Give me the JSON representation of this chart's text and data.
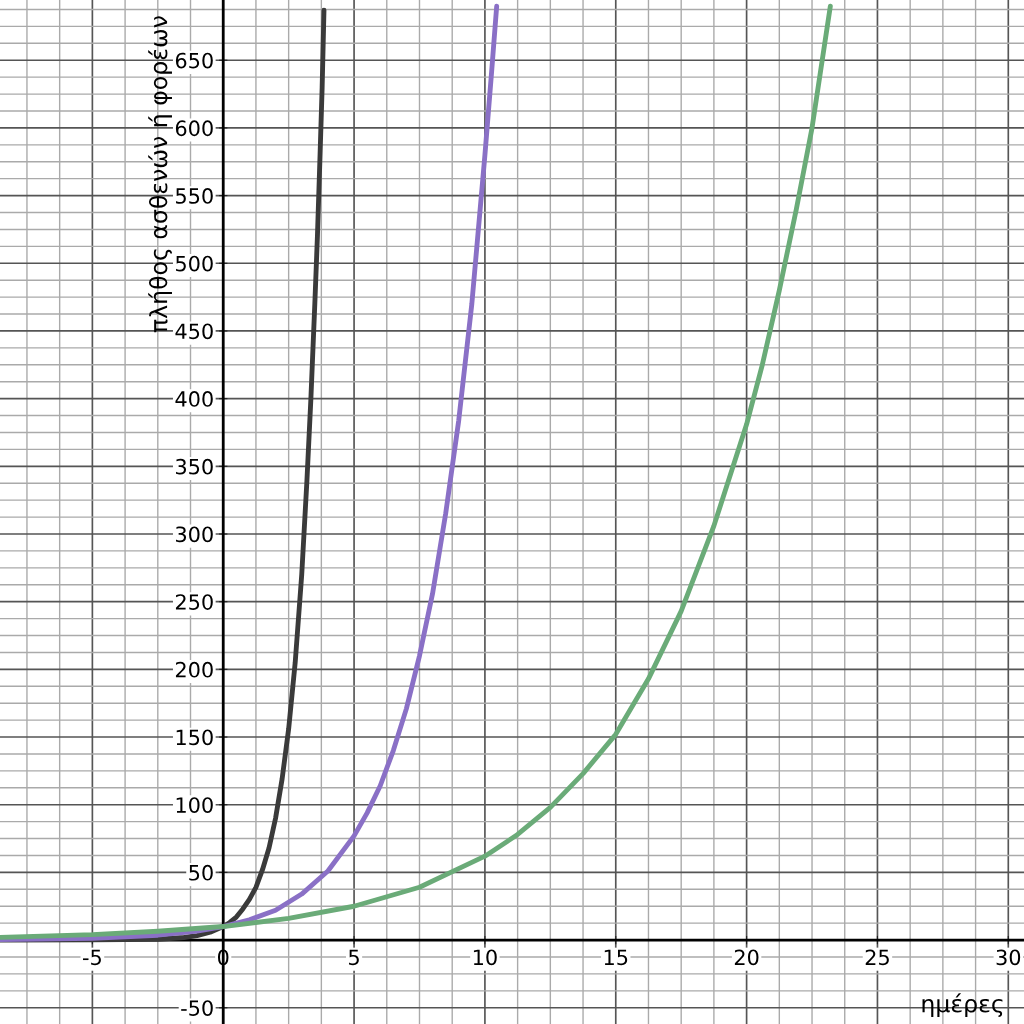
{
  "chart_data": {
    "type": "line",
    "xlabel": "ημέρες",
    "ylabel": "πλήθος ασθενών ή φορέων",
    "xlim": [
      -8.53,
      30.6
    ],
    "ylim": [
      -62,
      694.5
    ],
    "xticks": [
      -5,
      0,
      5,
      10,
      15,
      20,
      25,
      30
    ],
    "yticks": [
      -50,
      50,
      100,
      150,
      200,
      250,
      300,
      350,
      400,
      450,
      500,
      550,
      600,
      650
    ],
    "grid": true,
    "legend": false,
    "marker": "none",
    "line_style": "solid",
    "series": [
      {
        "color": "#3a3a3a",
        "x": [
          -8.53,
          -5,
          -2.5,
          -1.5,
          -1,
          -0.5,
          0,
          0.25,
          0.5,
          0.75,
          1,
          1.25,
          1.5,
          1.75,
          2,
          2.25,
          2.5,
          2.75,
          3,
          3.2,
          3.35,
          3.5,
          3.6,
          3.7,
          3.78,
          3.85
        ],
        "values": [
          0,
          0.1,
          0.6,
          1.9,
          3.3,
          5.8,
          10,
          13,
          17,
          23,
          30,
          39,
          52,
          68,
          90,
          119,
          156,
          205,
          270,
          340,
          400,
          470,
          520,
          580,
          630,
          687
        ]
      },
      {
        "color": "#8a70c6",
        "x": [
          -8.53,
          -5,
          -2.5,
          -1,
          0,
          1,
          2,
          3,
          4,
          5,
          5.5,
          6,
          6.5,
          7,
          7.5,
          8,
          8.5,
          9,
          9.5,
          10,
          10.25,
          10.45
        ],
        "values": [
          0.3,
          1.3,
          3.6,
          6.7,
          10,
          15,
          22,
          34,
          51,
          77,
          94,
          114,
          140,
          171,
          210,
          256,
          315,
          384,
          470,
          580,
          640,
          690
        ]
      },
      {
        "color": "#6aab78",
        "x": [
          -8.53,
          -5,
          -2.5,
          0,
          2.5,
          5,
          7.5,
          10,
          11.25,
          12.5,
          13.75,
          15,
          16.25,
          17.5,
          18.75,
          20,
          20.6,
          21.25,
          21.9,
          22.5,
          23.2
        ],
        "values": [
          2,
          4,
          6.5,
          10,
          16,
          25,
          39,
          62,
          78,
          98,
          123,
          152,
          193,
          243,
          306,
          381,
          425,
          480,
          540,
          600,
          690
        ]
      }
    ]
  }
}
